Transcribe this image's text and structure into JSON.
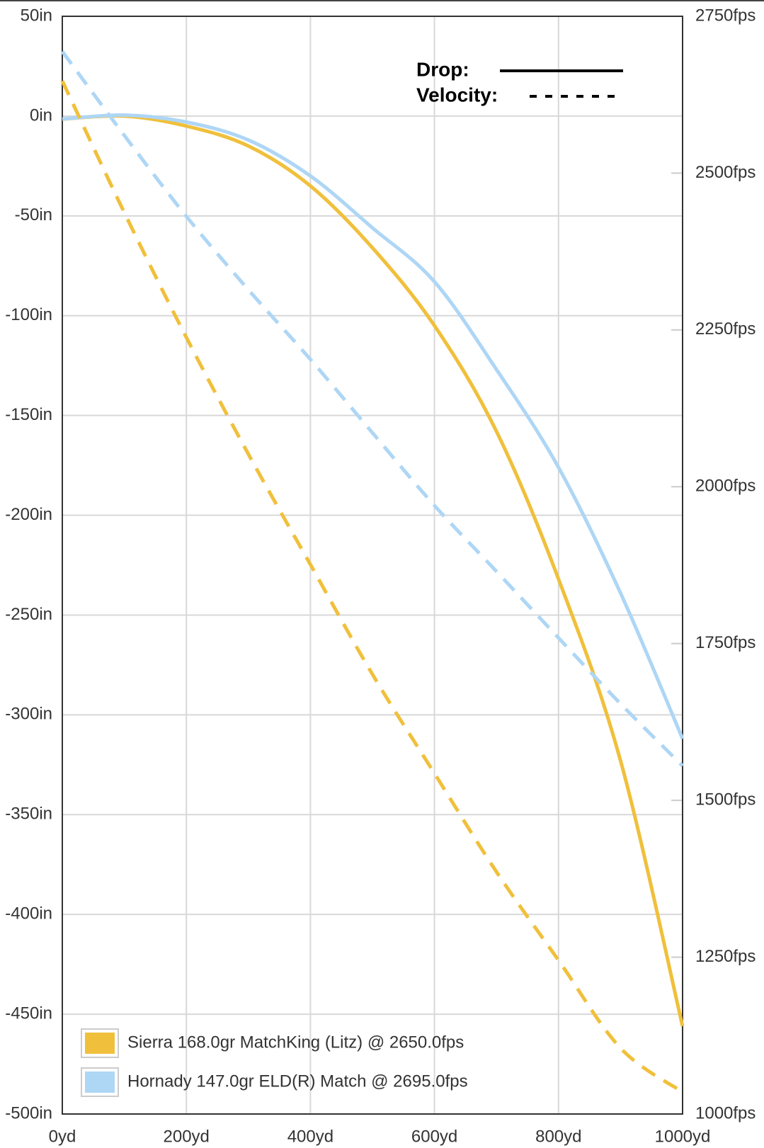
{
  "chart_data": {
    "type": "line",
    "x": [
      0,
      100,
      200,
      300,
      400,
      500,
      600,
      700,
      800,
      900,
      1000
    ],
    "xlim": [
      0,
      1000
    ],
    "xticks": [
      {
        "value": 0,
        "label": "0yd"
      },
      {
        "value": 200,
        "label": "200yd"
      },
      {
        "value": 400,
        "label": "400yd"
      },
      {
        "value": 600,
        "label": "600yd"
      },
      {
        "value": 800,
        "label": "800yd"
      },
      {
        "value": 1000,
        "label": "1000yd"
      }
    ],
    "ylim": [
      -500,
      50
    ],
    "yticks": [
      {
        "value": 50,
        "label": "50in"
      },
      {
        "value": 0,
        "label": "0in"
      },
      {
        "value": -50,
        "label": "-50in"
      },
      {
        "value": -100,
        "label": "-100in"
      },
      {
        "value": -150,
        "label": "-150in"
      },
      {
        "value": -200,
        "label": "-200in"
      },
      {
        "value": -250,
        "label": "-250in"
      },
      {
        "value": -300,
        "label": "-300in"
      },
      {
        "value": -350,
        "label": "-350in"
      },
      {
        "value": -400,
        "label": "-400in"
      },
      {
        "value": -450,
        "label": "-450in"
      },
      {
        "value": -500,
        "label": "-500in"
      }
    ],
    "y2lim": [
      1000,
      2750
    ],
    "y2ticks": [
      {
        "value": 2750,
        "label": "2750fps"
      },
      {
        "value": 2500,
        "label": "2500fps"
      },
      {
        "value": 2250,
        "label": "2250fps"
      },
      {
        "value": 2000,
        "label": "2000fps"
      },
      {
        "value": 1750,
        "label": "1750fps"
      },
      {
        "value": 1500,
        "label": "1500fps"
      },
      {
        "value": 1250,
        "label": "1250fps"
      },
      {
        "value": 1000,
        "label": "1000fps"
      }
    ],
    "grid": true,
    "style_legend": [
      {
        "label": "Drop:",
        "line_style": "solid"
      },
      {
        "label": "Velocity:",
        "line_style": "dashed"
      }
    ],
    "series": [
      {
        "name": "Sierra 168.0gr MatchKing (Litz) @ 2650.0fps",
        "color": "#f0c03c",
        "line_style": "solid",
        "values": [
          -1.5,
          0,
          -5,
          -15,
          -35,
          -66,
          -105,
          -158,
          -232,
          -323,
          -456
        ]
      },
      {
        "name": "Hornady 147.0gr ELD(R) Match @ 2695.0fps",
        "color": "#aed6f5",
        "line_style": "solid",
        "values": [
          -1.5,
          0.5,
          -3,
          -12,
          -30,
          -56,
          -83,
          -127,
          -176,
          -239,
          -312
        ]
      },
      {
        "name": "Sierra 168.0gr MatchKing (Litz) @ 2650.0fps",
        "color": "#f0c03c",
        "line_style": "dashed",
        "axis": "y2",
        "values": [
          2647,
          2437,
          2238,
          2052,
          1876,
          1701,
          1543,
          1386,
          1245,
          1105,
          1035
        ]
      },
      {
        "name": "Hornady 147.0gr ELD(R) Match @ 2695.0fps",
        "color": "#aed6f5",
        "line_style": "dashed",
        "axis": "y2",
        "values": [
          2694,
          2560,
          2431,
          2314,
          2203,
          2086,
          1970,
          1865,
          1759,
          1654,
          1555
        ]
      }
    ]
  }
}
